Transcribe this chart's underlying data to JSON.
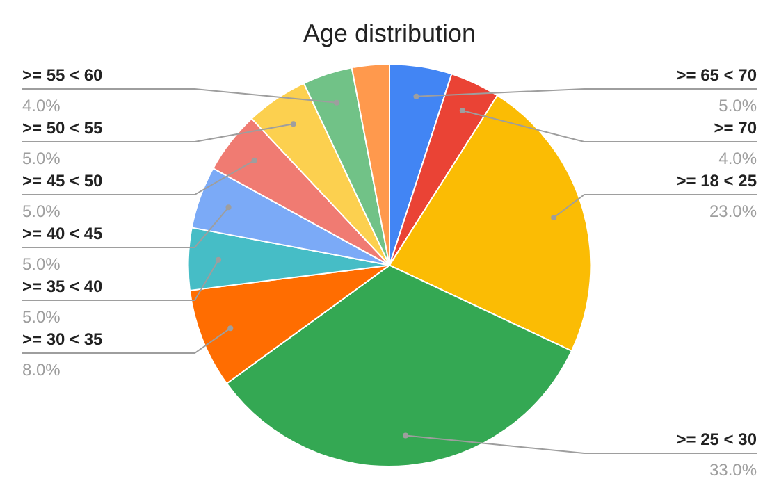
{
  "chart_data": {
    "type": "pie",
    "title": "Age distribution",
    "categories": [
      ">= 65 < 70",
      ">= 70",
      ">= 18 < 25",
      ">= 25 < 30",
      ">= 30 < 35",
      ">= 35 < 40",
      ">= 40 < 45",
      ">= 45 < 50",
      ">= 50 < 55",
      ">= 55 < 60",
      null
    ],
    "values": [
      5,
      4,
      23,
      33,
      8,
      5,
      5,
      5,
      5,
      4,
      3
    ],
    "value_labels": [
      "5.0%",
      "4.0%",
      "23.0%",
      "33.0%",
      "8.0%",
      "5.0%",
      "5.0%",
      "5.0%",
      "5.0%",
      "4.0%",
      null
    ],
    "colors": [
      "#4285f4",
      "#ea4335",
      "#fbbc04",
      "#34a853",
      "#ff6d01",
      "#46bdc6",
      "#7baaf7",
      "#f07b72",
      "#fcd04f",
      "#71c287",
      "#ff994d"
    ],
    "legend": false
  }
}
